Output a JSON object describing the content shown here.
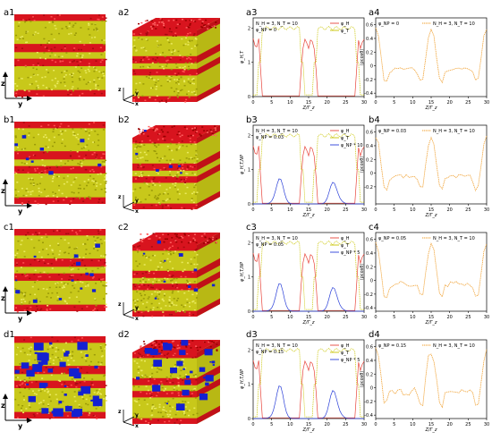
{
  "figure": {
    "rows": [
      {
        "id": "a",
        "labels": [
          "a1",
          "a2",
          "a3",
          "a4"
        ],
        "snapshot": {
          "blue_fraction": 0.0
        },
        "density_panel": {
          "legend_text": "N_H = 3, N_T = 10",
          "phi_text": "φ_NP = 0",
          "series": [
            {
              "name": "φ_H",
              "color": "#e8443a"
            },
            {
              "name": "φ_T",
              "color": "#c8c400"
            }
          ],
          "ylabel": "φ_H,T",
          "yticks": [
            "0",
            "1",
            "2"
          ],
          "xlabel": "Z/Γ_z"
        },
        "corr_panel": {
          "legend_text": "N_H = 3, N_T = 10",
          "phi_text": "φ_NP = 0",
          "yticks": [
            "-0.4",
            "-0.2",
            "0",
            "0.2",
            "0.4",
            "0.6"
          ],
          "ylabel": "⟨ρcosθ⟩",
          "xlabel": "Z/Γ_z"
        }
      },
      {
        "id": "b",
        "labels": [
          "b1",
          "b2",
          "b3",
          "b4"
        ],
        "snapshot": {
          "blue_fraction": 0.03
        },
        "density_panel": {
          "legend_text": "N_H = 3, N_T = 10",
          "phi_text": "φ_NP = 0.03",
          "series": [
            {
              "name": "φ_H",
              "color": "#e8443a"
            },
            {
              "name": "φ_T",
              "color": "#c8c400"
            },
            {
              "name": "φ_NP * 10",
              "color": "#2a3fd8"
            }
          ],
          "ylabel": "φ_H,T,NP",
          "yticks": [
            "0",
            "1",
            "2"
          ],
          "xlabel": "Z/Γ_z"
        },
        "corr_panel": {
          "legend_text": "N_H = 3, N_T = 10",
          "phi_text": "φ_NP = 0.03",
          "yticks": [
            "-0.2",
            "0",
            "0.2",
            "0.4",
            "0.6"
          ],
          "ylabel": "⟨ρcosθ⟩",
          "xlabel": "Z/Γ_z"
        }
      },
      {
        "id": "c",
        "labels": [
          "c1",
          "c2",
          "c3",
          "c4"
        ],
        "snapshot": {
          "blue_fraction": 0.05
        },
        "density_panel": {
          "legend_text": "N_H = 3, N_T = 10",
          "phi_text": "φ_NP = 0.05",
          "series": [
            {
              "name": "φ_H",
              "color": "#e8443a"
            },
            {
              "name": "φ_T",
              "color": "#c8c400"
            },
            {
              "name": "φ_NP * 5",
              "color": "#2a3fd8"
            }
          ],
          "ylabel": "φ_H,T,NP",
          "yticks": [
            "0",
            "1",
            "2"
          ],
          "xlabel": "Z/Γ_z"
        },
        "corr_panel": {
          "legend_text": "N_H = 3, N_T = 10",
          "phi_text": "φ_NP = 0.05",
          "yticks": [
            "-0.4",
            "-0.2",
            "0",
            "0.2",
            "0.4",
            "0.6"
          ],
          "ylabel": "⟨ρcosθ⟩",
          "xlabel": "Z/Γ_z"
        }
      },
      {
        "id": "d",
        "labels": [
          "d1",
          "d2",
          "d3",
          "d4"
        ],
        "snapshot": {
          "blue_fraction": 0.15
        },
        "density_panel": {
          "legend_text": "N_H = 3, N_T = 10",
          "phi_text": "φ_NP = 0.15",
          "series": [
            {
              "name": "φ_H",
              "color": "#e8443a"
            },
            {
              "name": "φ_T",
              "color": "#c8c400"
            },
            {
              "name": "φ_NP * 5",
              "color": "#2a3fd8"
            }
          ],
          "ylabel": "φ_H,T,NP",
          "yticks": [
            "0",
            "1",
            "2"
          ],
          "xlabel": "Z/Γ_z"
        },
        "corr_panel": {
          "legend_text": "N_H = 3, N_T = 10",
          "phi_text": "φ_NP = 0.15",
          "yticks": [
            "-0.4",
            "-0.2",
            "0",
            "0.2",
            "0.4",
            "0.6"
          ],
          "ylabel": "⟨ρcosθ⟩",
          "xlabel": "Z/Γ_z"
        }
      }
    ],
    "xticks": [
      "0",
      "5",
      "10",
      "15",
      "20",
      "25",
      "30"
    ],
    "axis_labels": {
      "z": "z",
      "y": "y",
      "x": "x"
    },
    "colors": {
      "head": "#d8141e",
      "tail": "#c8c81a",
      "np": "#1420d0",
      "corr_line": "#f0a030"
    }
  }
}
